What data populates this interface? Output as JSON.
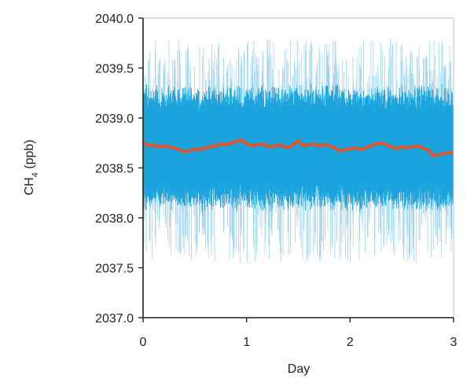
{
  "chart_data": {
    "type": "line",
    "title": "",
    "xlabel": "Day",
    "ylabel_main": "CH",
    "ylabel_sub": "4",
    "ylabel_unit": " (ppb)",
    "xlim": [
      0,
      3
    ],
    "ylim": [
      2037.0,
      2040.0
    ],
    "x_ticks": [
      "0",
      "1",
      "2",
      "3"
    ],
    "y_ticks": [
      "2037.0",
      "2037.5",
      "2038.0",
      "2038.5",
      "2039.0",
      "2039.5",
      "2040.0"
    ],
    "grid": false,
    "legend": "none",
    "colors": {
      "raw": "#1aa3dc",
      "raw_light": "#7cc8ea",
      "smoothed": "#e0552b",
      "axis": "#222222",
      "frame": "#b9cde0"
    },
    "raw_series": {
      "band_mean": 2038.7,
      "core_low": 2038.2,
      "core_high": 2039.2,
      "extreme_low": 2037.55,
      "extreme_high": 2039.8
    },
    "smoothed_series": {
      "x": [
        0.0,
        0.05,
        0.1,
        0.15,
        0.2,
        0.25,
        0.3,
        0.35,
        0.4,
        0.45,
        0.5,
        0.55,
        0.6,
        0.65,
        0.7,
        0.75,
        0.8,
        0.85,
        0.9,
        0.95,
        1.0,
        1.05,
        1.1,
        1.15,
        1.2,
        1.25,
        1.3,
        1.35,
        1.4,
        1.45,
        1.5,
        1.55,
        1.6,
        1.65,
        1.7,
        1.75,
        1.8,
        1.85,
        1.9,
        1.95,
        2.0,
        2.05,
        2.1,
        2.15,
        2.2,
        2.25,
        2.3,
        2.35,
        2.4,
        2.45,
        2.5,
        2.55,
        2.6,
        2.65,
        2.7,
        2.75,
        2.8,
        2.85,
        2.9,
        2.95,
        3.0
      ],
      "y": [
        2038.76,
        2038.72,
        2038.73,
        2038.71,
        2038.72,
        2038.71,
        2038.7,
        2038.68,
        2038.66,
        2038.67,
        2038.69,
        2038.68,
        2038.7,
        2038.71,
        2038.72,
        2038.74,
        2038.73,
        2038.75,
        2038.76,
        2038.78,
        2038.74,
        2038.72,
        2038.73,
        2038.74,
        2038.72,
        2038.71,
        2038.73,
        2038.72,
        2038.7,
        2038.73,
        2038.77,
        2038.72,
        2038.73,
        2038.74,
        2038.72,
        2038.73,
        2038.72,
        2038.7,
        2038.67,
        2038.68,
        2038.69,
        2038.7,
        2038.68,
        2038.7,
        2038.72,
        2038.74,
        2038.75,
        2038.73,
        2038.71,
        2038.69,
        2038.71,
        2038.7,
        2038.71,
        2038.72,
        2038.7,
        2038.68,
        2038.62,
        2038.63,
        2038.64,
        2038.65,
        2038.65
      ]
    }
  }
}
